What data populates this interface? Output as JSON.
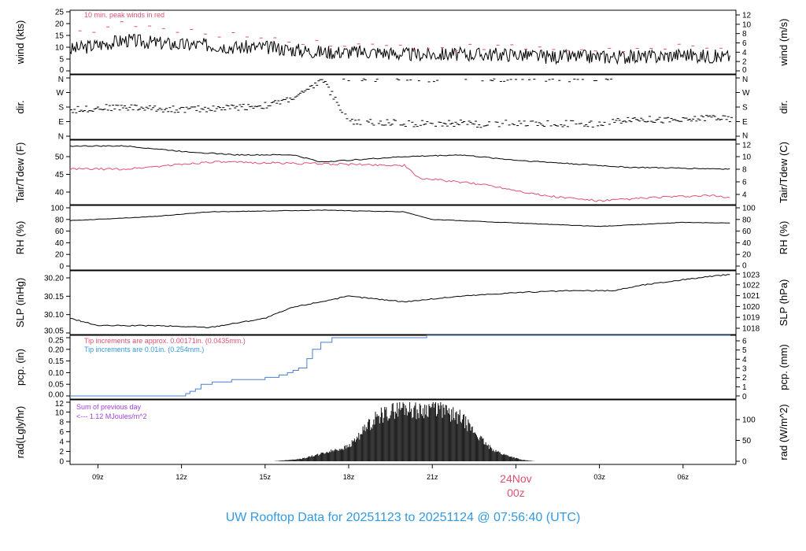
{
  "title": "UW Rooftop Data for 20251123  to  20251124 @ 07:56:40  (UTC)",
  "chart_data": [
    {
      "type": "line",
      "name": "wind",
      "ylabel": "wind (kts)",
      "ylabel_right": "wind (m/s)",
      "ylim": [
        0,
        25
      ],
      "yticks": [
        0,
        5,
        10,
        15,
        20,
        25
      ],
      "right_ylim": [
        0,
        12.86
      ],
      "right_yticks": [
        0,
        2,
        4,
        6,
        8,
        10,
        12
      ],
      "annotation": "10 min. peak winds in red",
      "series": [
        {
          "name": "wind",
          "color": "#000000",
          "t": [
            0,
            1,
            2,
            3,
            4,
            5,
            6,
            7,
            8,
            9,
            10,
            11,
            12,
            13,
            14,
            15,
            16,
            17,
            18,
            19,
            20,
            21,
            22,
            23,
            23.7
          ],
          "values": [
            9,
            11,
            13,
            12,
            11,
            11,
            10,
            10,
            9,
            8,
            8,
            8,
            7,
            7,
            7,
            7,
            7,
            6,
            6,
            6,
            6,
            6,
            7,
            6,
            6
          ]
        },
        {
          "name": "peak",
          "color": "#e05070",
          "t": [
            0,
            1,
            2,
            3,
            4,
            5,
            6,
            7,
            8,
            9,
            10,
            11,
            12,
            13,
            14,
            15,
            16,
            17,
            18,
            19,
            20,
            21,
            22,
            23,
            23.7
          ],
          "values": [
            16,
            18,
            20,
            18,
            16,
            16,
            15,
            14,
            13,
            12,
            11,
            11,
            10,
            10,
            10,
            10,
            10,
            9,
            9,
            9,
            9,
            9,
            10,
            9,
            9
          ]
        }
      ]
    },
    {
      "type": "scatter",
      "name": "dir",
      "ylabel": "dir.",
      "ylabel_right": "dir.",
      "yticks": [
        "N",
        "E",
        "S",
        "W",
        "N"
      ],
      "ylim": [
        0,
        360
      ],
      "series": [
        {
          "name": "direction",
          "t": [
            0,
            1,
            2,
            3,
            4,
            5,
            6,
            7,
            7.5,
            8,
            8.5,
            9,
            10,
            11,
            12,
            13,
            14,
            15,
            16,
            17,
            18,
            19,
            20,
            21,
            22,
            23,
            23.7
          ],
          "values": [
            160,
            175,
            180,
            170,
            165,
            170,
            180,
            190,
            210,
            240,
            280,
            355,
            90,
            85,
            80,
            75,
            80,
            70,
            85,
            75,
            80,
            70,
            110,
            100,
            95,
            120,
            100
          ]
        }
      ]
    },
    {
      "type": "line",
      "name": "temp",
      "ylabel": "Tair/Tdew (F)",
      "ylabel_right": "Tair/Tdew (C)",
      "ylim": [
        35.4,
        53.6
      ],
      "yticks": [
        40,
        45,
        50
      ],
      "right_yticks": [
        4,
        6,
        8,
        10,
        12
      ],
      "series": [
        {
          "name": "Tair",
          "color": "#000000",
          "t": [
            0,
            2,
            4,
            6,
            8,
            9,
            12,
            14,
            16,
            18,
            20,
            23.7
          ],
          "values": [
            53,
            53,
            51.5,
            50.5,
            50.5,
            48.5,
            50,
            50.5,
            49,
            48,
            47,
            46.5
          ]
        },
        {
          "name": "Tdew",
          "color": "#e05070",
          "t": [
            0,
            2,
            5,
            9,
            12,
            12.5,
            15,
            17,
            19,
            21,
            23,
            23.7
          ],
          "values": [
            46.5,
            46.5,
            48.5,
            48,
            47.5,
            44,
            42,
            39,
            37.5,
            38.5,
            39,
            38.5
          ]
        }
      ]
    },
    {
      "type": "line",
      "name": "rh",
      "ylabel": "RH (%)",
      "ylabel_right": "RH (%)",
      "ylim": [
        0,
        100
      ],
      "yticks": [
        0,
        20,
        40,
        60,
        80,
        100
      ],
      "series": [
        {
          "name": "RH",
          "color": "#000000",
          "t": [
            0,
            3,
            5,
            9,
            12,
            13,
            17,
            19,
            22,
            23.7
          ],
          "values": [
            78,
            85,
            93,
            96,
            93,
            80,
            72,
            68,
            75,
            74
          ]
        }
      ]
    },
    {
      "type": "line",
      "name": "slp",
      "ylabel": "SLP (inHg)",
      "ylabel_right": "SLP (hPa)",
      "ylim": [
        30.05,
        30.2
      ],
      "yticks": [
        "30.05",
        "30.10",
        "30.15",
        "30.20"
      ],
      "right_yticks": [
        1018,
        1019,
        1020,
        1021,
        1022,
        1023
      ],
      "series": [
        {
          "name": "SLP",
          "color": "#000000",
          "t": [
            0,
            1,
            3,
            5,
            7,
            8,
            10,
            12,
            14,
            16,
            18,
            19.5,
            20.5,
            22,
            23.7
          ],
          "values": [
            30.09,
            30.07,
            30.07,
            30.065,
            30.09,
            30.12,
            30.15,
            30.135,
            30.15,
            30.16,
            30.165,
            30.165,
            30.18,
            30.195,
            30.21
          ]
        }
      ]
    },
    {
      "type": "line",
      "name": "pcp",
      "ylabel": "pcp. (in)",
      "ylabel_right": "pcp. (mm)",
      "ylim": [
        0,
        0.25
      ],
      "yticks": [
        "0.00",
        "0.05",
        "0.10",
        "0.15",
        "0.20",
        "0.25"
      ],
      "right_yticks": [
        0,
        1,
        2,
        3,
        4,
        5,
        6
      ],
      "annotations": [
        "Tip increments are approx. 0.00171in. (0.0435mm.)",
        "Tip increments are 0.01in. (0.254mm.)"
      ],
      "series": [
        {
          "name": "precip",
          "color": "#4a7fd0",
          "t": [
            0,
            4.15,
            4.3,
            4.5,
            4.7,
            5.1,
            5.8,
            7,
            7.5,
            7.8,
            8,
            8.2,
            8.5,
            8.7,
            9.0,
            9.4,
            12.8,
            23.7
          ],
          "values": [
            0,
            0.01,
            0.02,
            0.03,
            0.05,
            0.06,
            0.07,
            0.08,
            0.09,
            0.1,
            0.11,
            0.12,
            0.16,
            0.2,
            0.23,
            0.25,
            0.26,
            0.26
          ]
        }
      ]
    },
    {
      "type": "area",
      "name": "rad",
      "ylabel": "rad(Lgly/hr)",
      "ylabel_right": "rad (W/m^2)",
      "ylim": [
        0,
        12
      ],
      "yticks": [
        0,
        2,
        4,
        6,
        8,
        10,
        12
      ],
      "right_yticks": [
        0,
        50,
        100
      ],
      "annotations": [
        "Sum of previous day",
        "<--- 1.12 MJoules/m^2"
      ],
      "series": [
        {
          "name": "radiation",
          "color": "#222222",
          "t": [
            7.3,
            8.3,
            9,
            10,
            10.5,
            11,
            11.5,
            12,
            12.5,
            13,
            13.5,
            14,
            14.5,
            15,
            15.5,
            16.2,
            16.7
          ],
          "values": [
            0,
            0.5,
            1.5,
            3,
            6,
            9,
            10,
            11,
            10,
            11,
            10,
            9,
            6,
            3,
            1.5,
            0.3,
            0
          ]
        }
      ]
    }
  ],
  "x_axis": {
    "ticks": [
      "09z",
      "12z",
      "15z",
      "18z",
      "21z",
      "00z",
      "03z",
      "06z"
    ],
    "tick_hours": [
      1,
      4,
      7,
      10,
      13,
      16,
      19,
      22
    ],
    "date_label": "24Nov",
    "date_sub": "00z"
  }
}
